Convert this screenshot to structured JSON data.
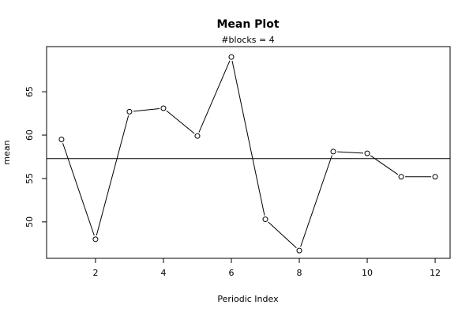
{
  "chart_data": {
    "type": "line",
    "title": "Mean Plot",
    "subtitle": "#blocks =  4",
    "xlabel": "Periodic Index",
    "ylabel": "mean",
    "x": [
      1,
      2,
      3,
      4,
      5,
      6,
      7,
      8,
      9,
      10,
      11,
      12
    ],
    "series": [
      {
        "values": [
          59.5,
          48.0,
          62.7,
          63.1,
          59.9,
          69.0,
          50.3,
          46.7,
          58.1,
          57.9,
          55.2,
          55.2
        ]
      }
    ],
    "reference_line": {
      "y": 57.3
    },
    "xticks": [
      2,
      4,
      6,
      8,
      10,
      12
    ],
    "xtick_labels": [
      "2",
      "4",
      "6",
      "8",
      "10",
      "12"
    ],
    "yticks": [
      50,
      55,
      60,
      65
    ],
    "ytick_labels": [
      "50",
      "55",
      "60",
      "65"
    ],
    "xlim": [
      0.56,
      12.44
    ],
    "ylim": [
      45.8,
      70.2
    ],
    "grid": false,
    "marker": "open-circle",
    "line_color": "#000000"
  }
}
